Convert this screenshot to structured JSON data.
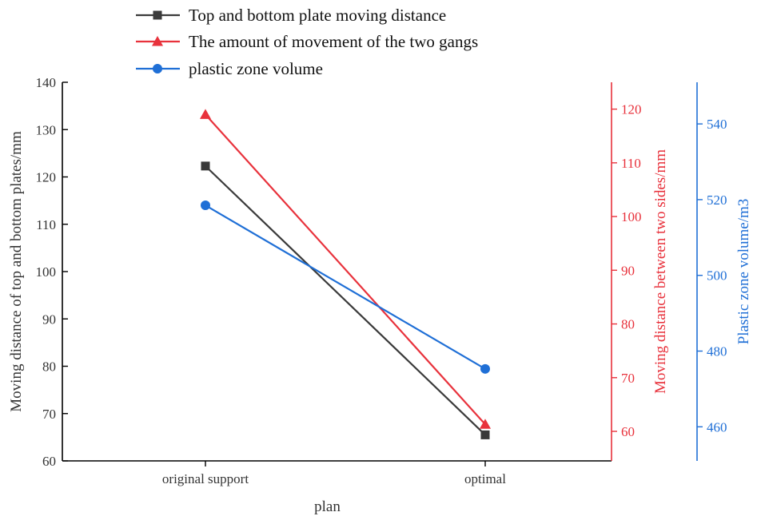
{
  "chart_data": {
    "type": "line",
    "title": "",
    "xlabel": "plan",
    "categories": [
      "original support",
      "optimal"
    ],
    "axes": {
      "left": {
        "label": "Moving distance of top and bottom plates/mm",
        "range": [
          60,
          140
        ],
        "ticks": [
          60,
          70,
          80,
          90,
          100,
          110,
          120,
          130,
          140
        ],
        "color": "#000000"
      },
      "right1": {
        "label": "Moving distance between two sides/mm",
        "range": [
          54.5,
          125
        ],
        "ticks": [
          60,
          70,
          80,
          90,
          100,
          110,
          120
        ],
        "color": "#e8323c"
      },
      "right2": {
        "label": "Plastic zone volume/m3",
        "range": [
          451,
          551
        ],
        "ticks": [
          460,
          480,
          500,
          520,
          540
        ],
        "color": "#1f6fd6"
      }
    },
    "series": [
      {
        "name": "Top and bottom plate moving distance",
        "axis": "left",
        "values": [
          122.3,
          65.5
        ],
        "color": "#3a3a3a",
        "marker": "square"
      },
      {
        "name": "The amount of movement of the two gangs",
        "axis": "right1",
        "values": [
          119.0,
          61.3
        ],
        "color": "#e8323c",
        "marker": "triangle"
      },
      {
        "name": "plastic zone volume",
        "axis": "right2",
        "values": [
          518.5,
          475.3
        ],
        "color": "#1f6fd6",
        "marker": "circle"
      }
    ],
    "legend": "top-left",
    "grid": false
  }
}
